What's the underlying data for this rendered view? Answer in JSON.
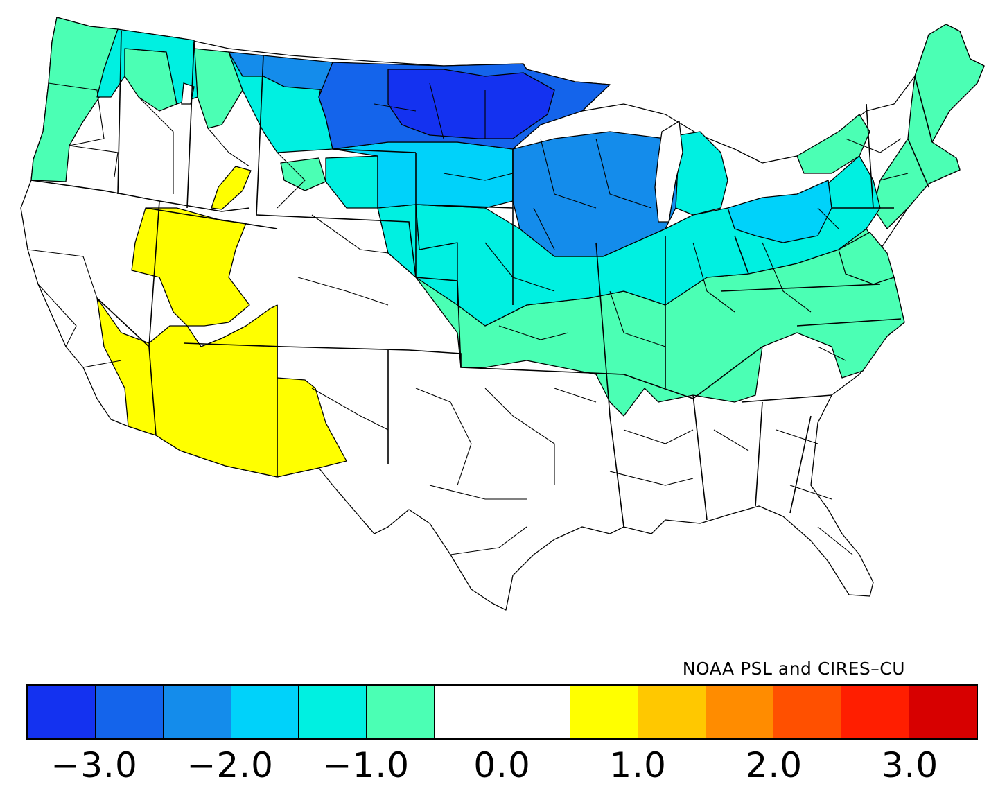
{
  "map": {
    "legend": {
      "credit": "NOAA PSL and CIRES–CU",
      "colors": [
        "#1432f0",
        "#1464eb",
        "#148ceb",
        "#00d2fa",
        "#00f0e1",
        "#4bffb4",
        "#ffffff",
        "#ffffff",
        "#ffff00",
        "#ffc800",
        "#ff8c00",
        "#ff5000",
        "#ff1e00",
        "#d70000"
      ],
      "ticks": [
        {
          "label": "−3.0",
          "value": -3.0
        },
        {
          "label": "−2.0",
          "value": -2.0
        },
        {
          "label": "−1.0",
          "value": -1.0
        },
        {
          "label": "0.0",
          "value": 0.0
        },
        {
          "label": "1.0",
          "value": 1.0
        },
        {
          "label": "2.0",
          "value": 2.0
        },
        {
          "label": "3.0",
          "value": 3.0
        }
      ],
      "range": [
        -3.5,
        3.5
      ]
    }
  }
}
